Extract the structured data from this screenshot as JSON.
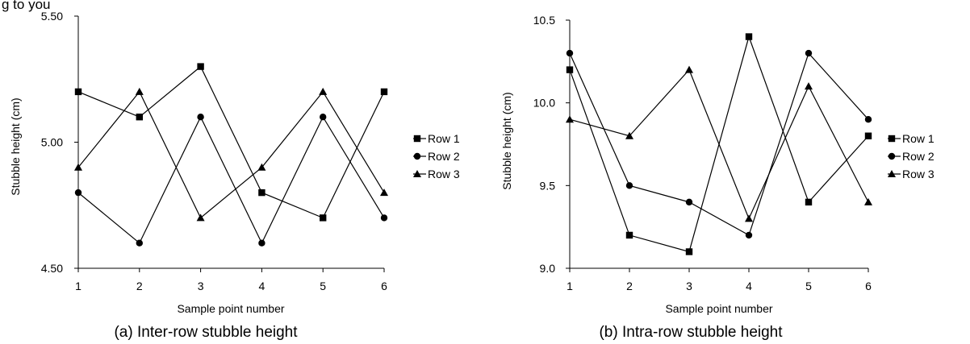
{
  "figure_title": "g to you",
  "chart_data": [
    {
      "type": "line",
      "caption": "(a) Inter-row stubble height",
      "xlabel": "Sample point number",
      "ylabel": "Stubble height (cm)",
      "x": [
        1,
        2,
        3,
        4,
        5,
        6
      ],
      "xticks": [
        "1",
        "2",
        "3",
        "4",
        "5",
        "6"
      ],
      "ylim": [
        4.5,
        5.5
      ],
      "yticks": [
        "4.50",
        "5.00",
        "5.50"
      ],
      "ytick_values": [
        4.5,
        5.0,
        5.5
      ],
      "legend_position": "right",
      "grid": false,
      "series": [
        {
          "name": "Row 1",
          "marker": "square",
          "values": [
            5.2,
            5.1,
            5.3,
            4.8,
            4.7,
            5.2
          ]
        },
        {
          "name": "Row 2",
          "marker": "circle",
          "values": [
            4.8,
            4.6,
            5.1,
            4.6,
            5.1,
            4.7
          ]
        },
        {
          "name": "Row 3",
          "marker": "triangle",
          "values": [
            4.9,
            5.2,
            4.7,
            4.9,
            5.2,
            4.8
          ]
        }
      ]
    },
    {
      "type": "line",
      "caption": "(b) Intra-row stubble height",
      "xlabel": "Sample point number",
      "ylabel": "Stubble height (cm)",
      "x": [
        1,
        2,
        3,
        4,
        5,
        6
      ],
      "xticks": [
        "1",
        "2",
        "3",
        "4",
        "5",
        "6"
      ],
      "ylim": [
        9.0,
        10.5
      ],
      "yticks": [
        "9.0",
        "9.5",
        "10.0",
        "10.5"
      ],
      "ytick_values": [
        9.0,
        9.5,
        10.0,
        10.5
      ],
      "legend_position": "right",
      "grid": false,
      "series": [
        {
          "name": "Row 1",
          "marker": "square",
          "values": [
            10.2,
            9.2,
            9.1,
            10.4,
            9.4,
            9.8
          ]
        },
        {
          "name": "Row 2",
          "marker": "circle",
          "values": [
            10.3,
            9.5,
            9.4,
            9.2,
            10.3,
            9.9
          ]
        },
        {
          "name": "Row 3",
          "marker": "triangle",
          "values": [
            9.9,
            9.8,
            10.2,
            9.3,
            10.1,
            9.4
          ]
        }
      ]
    }
  ]
}
